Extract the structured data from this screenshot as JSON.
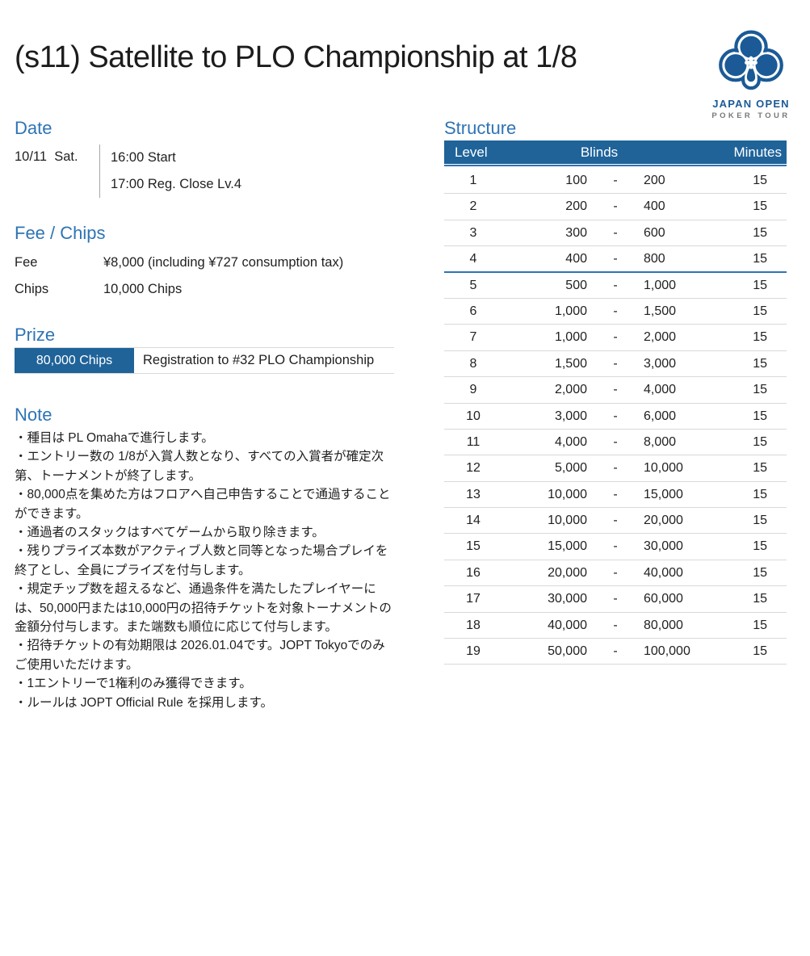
{
  "page": {
    "title": "(s11) Satellite to PLO Championship at 1/8"
  },
  "logo": {
    "name": "JAPAN OPEN",
    "subname": "POKER TOUR",
    "brand_blue": "#1b5a96",
    "brand_gray": "#77787b"
  },
  "date": {
    "heading": "Date",
    "day": "10/11  Sat.",
    "times": [
      "16:00 Start",
      "17:00 Reg. Close Lv.4"
    ]
  },
  "fee_chips": {
    "heading": "Fee / Chips",
    "rows": [
      {
        "label": "Fee",
        "value": "¥8,000 (including ¥727 consumption tax)"
      },
      {
        "label": "Chips",
        "value": "10,000 Chips"
      }
    ]
  },
  "prize": {
    "heading": "Prize",
    "rows": [
      {
        "amount": "80,000 Chips",
        "description": "Registration to #32 PLO Championship"
      }
    ]
  },
  "note": {
    "heading": "Note",
    "items": [
      "・種目は PL Omahaで進行します。",
      "・エントリー数の 1/8が入賞人数となり、すべての入賞者が確定次第、トーナメントが終了します。",
      "・80,000点を集めた方はフロアへ自己申告することで通過することができます。",
      "・通過者のスタックはすべてゲームから取り除きます。",
      "・残りプライズ本数がアクティブ人数と同等となった場合プレイを終了とし、全員にプライズを付与します。",
      "・規定チップ数を超えるなど、通過条件を満たしたプレイヤーには、50,000円または10,000円の招待チケットを対象トーナメントの金額分付与します。また端数も順位に応じて付与します。",
      "・招待チケットの有効期限は 2026.01.04です。JOPT Tokyoでのみご使用いただけます。",
      "・1エントリーで1権利のみ獲得できます。",
      "・ルールは JOPT Official Rule を採用します。"
    ]
  },
  "structure": {
    "heading": "Structure",
    "columns": {
      "level": "Level",
      "blinds": "Blinds",
      "minutes": "Minutes"
    },
    "reg_close_after_level": 4,
    "rows": [
      {
        "level": "1",
        "sb": "100",
        "dash": "-",
        "bb": "200",
        "minutes": "15"
      },
      {
        "level": "2",
        "sb": "200",
        "dash": "-",
        "bb": "400",
        "minutes": "15"
      },
      {
        "level": "3",
        "sb": "300",
        "dash": "-",
        "bb": "600",
        "minutes": "15"
      },
      {
        "level": "4",
        "sb": "400",
        "dash": "-",
        "bb": "800",
        "minutes": "15"
      },
      {
        "level": "5",
        "sb": "500",
        "dash": "-",
        "bb": "1,000",
        "minutes": "15"
      },
      {
        "level": "6",
        "sb": "1,000",
        "dash": "-",
        "bb": "1,500",
        "minutes": "15"
      },
      {
        "level": "7",
        "sb": "1,000",
        "dash": "-",
        "bb": "2,000",
        "minutes": "15"
      },
      {
        "level": "8",
        "sb": "1,500",
        "dash": "-",
        "bb": "3,000",
        "minutes": "15"
      },
      {
        "level": "9",
        "sb": "2,000",
        "dash": "-",
        "bb": "4,000",
        "minutes": "15"
      },
      {
        "level": "10",
        "sb": "3,000",
        "dash": "-",
        "bb": "6,000",
        "minutes": "15"
      },
      {
        "level": "11",
        "sb": "4,000",
        "dash": "-",
        "bb": "8,000",
        "minutes": "15"
      },
      {
        "level": "12",
        "sb": "5,000",
        "dash": "-",
        "bb": "10,000",
        "minutes": "15"
      },
      {
        "level": "13",
        "sb": "10,000",
        "dash": "-",
        "bb": "15,000",
        "minutes": "15"
      },
      {
        "level": "14",
        "sb": "10,000",
        "dash": "-",
        "bb": "20,000",
        "minutes": "15"
      },
      {
        "level": "15",
        "sb": "15,000",
        "dash": "-",
        "bb": "30,000",
        "minutes": "15"
      },
      {
        "level": "16",
        "sb": "20,000",
        "dash": "-",
        "bb": "40,000",
        "minutes": "15"
      },
      {
        "level": "17",
        "sb": "30,000",
        "dash": "-",
        "bb": "60,000",
        "minutes": "15"
      },
      {
        "level": "18",
        "sb": "40,000",
        "dash": "-",
        "bb": "80,000",
        "minutes": "15"
      },
      {
        "level": "19",
        "sb": "50,000",
        "dash": "-",
        "bb": "100,000",
        "minutes": "15"
      }
    ]
  },
  "colors": {
    "heading_blue": "#2e74b5",
    "table_header_blue": "#1f6399",
    "prize_box_blue": "#1f6399",
    "divider_gray": "#d9d9d9",
    "reg_close_line_blue": "#2e74b5",
    "text_dark": "#1f1f1f"
  }
}
